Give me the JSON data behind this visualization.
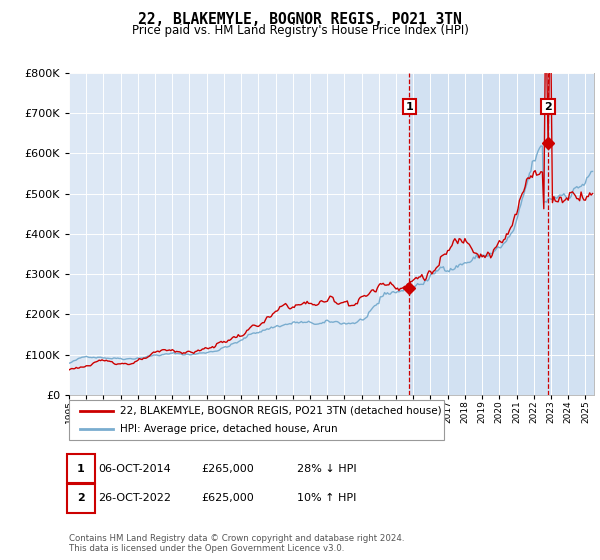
{
  "title": "22, BLAKEMYLE, BOGNOR REGIS, PO21 3TN",
  "subtitle": "Price paid vs. HM Land Registry's House Price Index (HPI)",
  "legend_line1": "22, BLAKEMYLE, BOGNOR REGIS, PO21 3TN (detached house)",
  "legend_line2": "HPI: Average price, detached house, Arun",
  "transaction1_label": "1",
  "transaction1_date": "06-OCT-2014",
  "transaction1_price": "£265,000",
  "transaction1_hpi": "28% ↓ HPI",
  "transaction1_year": 2014.77,
  "transaction1_value": 265000,
  "transaction2_label": "2",
  "transaction2_date": "26-OCT-2022",
  "transaction2_price": "£625,000",
  "transaction2_hpi": "10% ↑ HPI",
  "transaction2_year": 2022.82,
  "transaction2_value": 625000,
  "plot_bg_color": "#dde8f5",
  "fig_bg_color": "#ffffff",
  "shaded_color": "#ccddf0",
  "red_color": "#cc0000",
  "blue_color": "#7aadcf",
  "grid_color": "#ffffff",
  "footer": "Contains HM Land Registry data © Crown copyright and database right 2024.\nThis data is licensed under the Open Government Licence v3.0.",
  "ylim": [
    0,
    800000
  ],
  "xlim_start": 1995,
  "xlim_end": 2025.5
}
